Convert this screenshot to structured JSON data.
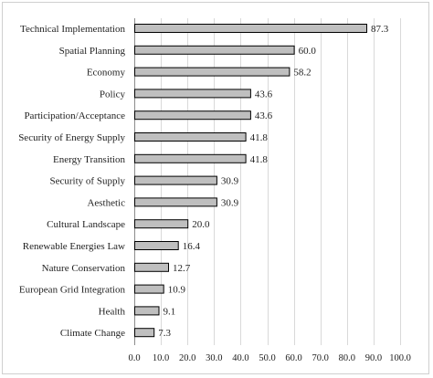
{
  "chart_data": {
    "type": "bar",
    "orientation": "horizontal",
    "categories": [
      "Technical Implementation",
      "Spatial Planning",
      "Economy",
      "Policy",
      "Participation/Acceptance",
      "Security of Energy Supply",
      "Energy Transition",
      "Security of Supply",
      "Aesthetic",
      "Cultural Landscape",
      "Renewable Energies Law",
      "Nature Conservation",
      "European Grid Integration",
      "Health",
      "Climate Change"
    ],
    "values": [
      87.3,
      60.0,
      58.2,
      43.6,
      43.6,
      41.8,
      41.8,
      30.9,
      30.9,
      20.0,
      16.4,
      12.7,
      10.9,
      9.1,
      7.3
    ],
    "value_labels": [
      "87.3",
      "60.0",
      "58.2",
      "43.6",
      "43.6",
      "41.8",
      "41.8",
      "30.9",
      "30.9",
      "20.0",
      "16.4",
      "12.7",
      "10.9",
      "9.1",
      "7.3"
    ],
    "x_ticks": [
      "0.0",
      "10.0",
      "20.0",
      "30.0",
      "40.0",
      "50.0",
      "60.0",
      "70.0",
      "80.0",
      "90.0",
      "100.0"
    ],
    "xlim": [
      0,
      100
    ],
    "title": "",
    "xlabel": "",
    "ylabel": "",
    "grid": true,
    "colors": {
      "bar_fill": "#bfbfbf",
      "bar_stroke": "#000000",
      "grid": "#d9d9d9"
    }
  }
}
